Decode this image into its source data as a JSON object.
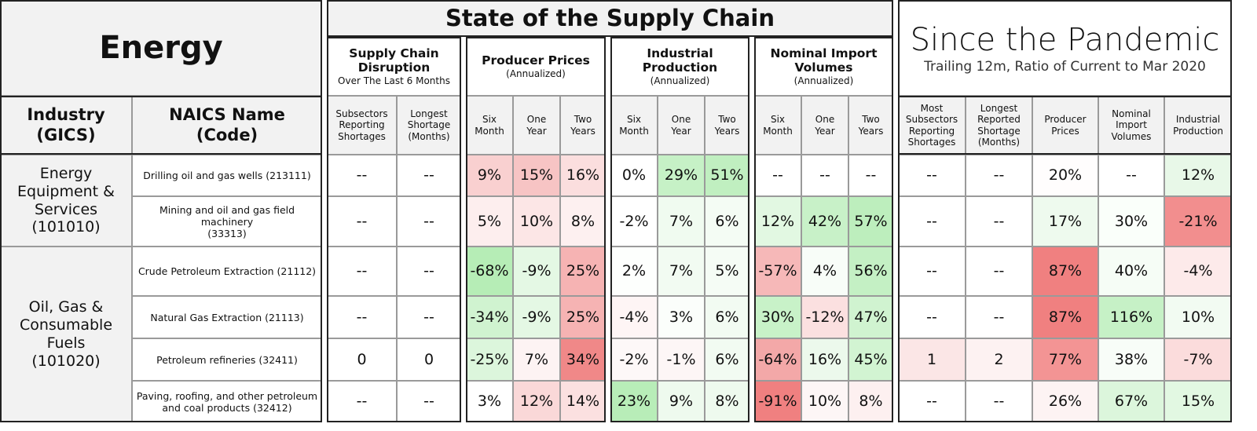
{
  "header": {
    "title": "Energy"
  },
  "supply_chain": {
    "title": "State of the Supply Chain",
    "groups": [
      {
        "title": "Supply Chain\nDisruption",
        "subtitle": "Over The Last 6 Months"
      },
      {
        "title": "Producer Prices",
        "subtitle": "(Annualized)"
      },
      {
        "title": "Industrial Production",
        "subtitle": "(Annualized)"
      },
      {
        "title": "Nominal Import\nVolumes",
        "subtitle": "(Annualized)"
      }
    ]
  },
  "pandemic": {
    "title": "Since the Pandemic",
    "subtitle": "Trailing 12m, Ratio of Current to Mar 2020"
  },
  "column_headers": [
    "Industry\n(GICS)",
    "NAICS Name\n(Code)",
    "Subsectors\nReporting\nShortages",
    "Longest\nShortage\n(Months)",
    "Six\nMonth",
    "One\nYear",
    "Two\nYears",
    "Six\nMonth",
    "One\nYear",
    "Two\nYears",
    "Six\nMonth",
    "One\nYear",
    "Two\nYears",
    "Most\nSubsectors\nReporting\nShortages",
    "Longest\nReported\nShortage\n(Months)",
    "Producer\nPrices",
    "Nominal\nImport\nVolumes",
    "Industrial\nProduction"
  ],
  "industries": [
    {
      "name": "Energy\nEquipment &\nServices\n(101010)",
      "rows": [
        {
          "naics": "Drilling oil and gas wells   (213111)",
          "cells": [
            "--",
            "--",
            "9%",
            "15%",
            "16%",
            "0%",
            "29%",
            "51%",
            "--",
            "--",
            "--",
            "--",
            "--",
            "20%",
            "--",
            "12%"
          ],
          "colors": [
            "#ffffff",
            "#ffffff",
            "#f9d0d0",
            "#f7c4c4",
            "#fbdede",
            "#ffffff",
            "#c6f1c6",
            "#c0efc0",
            "#ffffff",
            "#ffffff",
            "#ffffff",
            "#ffffff",
            "#ffffff",
            "#fffdfd",
            "#ffffff",
            "#e8f8e8"
          ]
        },
        {
          "naics": "Mining and oil and gas field machinery\n(33313)",
          "cells": [
            "--",
            "--",
            "5%",
            "10%",
            "8%",
            "-2%",
            "7%",
            "6%",
            "12%",
            "42%",
            "57%",
            "--",
            "--",
            "17%",
            "30%",
            "-21%"
          ],
          "colors": [
            "#ffffff",
            "#ffffff",
            "#fdeeee",
            "#fce6e6",
            "#fdf0f0",
            "#ffffff",
            "#f0fbf0",
            "#f4fcf4",
            "#e2f8e2",
            "#c8f1c8",
            "#bdeebd",
            "#ffffff",
            "#ffffff",
            "#eefaee",
            "#fafffa",
            "#f28e8e"
          ]
        }
      ]
    },
    {
      "name": "Oil, Gas &\nConsumable\nFuels\n(101020)",
      "rows": [
        {
          "naics": "Crude Petroleum Extraction (21112)",
          "cells": [
            "--",
            "--",
            "-68%",
            "-9%",
            "25%",
            "2%",
            "7%",
            "5%",
            "-57%",
            "4%",
            "56%",
            "--",
            "--",
            "87%",
            "40%",
            "-4%"
          ],
          "colors": [
            "#ffffff",
            "#ffffff",
            "#b6edb6",
            "#e4f8e4",
            "#f6b3b3",
            "#fdfffd",
            "#f2fbf2",
            "#f5fcf5",
            "#f6b8b8",
            "#f8fdf8",
            "#c4f0c4",
            "#ffffff",
            "#ffffff",
            "#f08080",
            "#f6fdf6",
            "#fdeaea"
          ]
        },
        {
          "naics": "Natural Gas Extraction (21113)",
          "cells": [
            "--",
            "--",
            "-34%",
            "-9%",
            "25%",
            "-4%",
            "3%",
            "6%",
            "30%",
            "-12%",
            "47%",
            "--",
            "--",
            "87%",
            "116%",
            "10%"
          ],
          "colors": [
            "#ffffff",
            "#ffffff",
            "#d0f3d0",
            "#e4f8e4",
            "#f6b3b3",
            "#fef5f5",
            "#fbfefb",
            "#f2fbf2",
            "#c8f2c8",
            "#fbe0e0",
            "#d0f3d0",
            "#ffffff",
            "#ffffff",
            "#f08080",
            "#c6f1c6",
            "#f2fbf2"
          ]
        },
        {
          "naics": "Petroleum refineries   (32411)",
          "cells": [
            "0",
            "0",
            "-25%",
            "7%",
            "34%",
            "-2%",
            "-1%",
            "6%",
            "-64%",
            "16%",
            "45%",
            "1",
            "2",
            "77%",
            "38%",
            "-7%"
          ],
          "colors": [
            "#ffffff",
            "#ffffff",
            "#dcf6dc",
            "#fdf3f3",
            "#f08888",
            "#fdf8f8",
            "#fdf6f6",
            "#f2fbf2",
            "#f3a8a8",
            "#ecf9ec",
            "#d2f4d2",
            "#fbe6e6",
            "#fdf2f2",
            "#f39494",
            "#f8fdf8",
            "#fbdcdc"
          ]
        },
        {
          "naics": "Paving, roofing, and other petroleum\nand coal products   (32412)",
          "cells": [
            "--",
            "--",
            "3%",
            "12%",
            "14%",
            "23%",
            "9%",
            "8%",
            "-91%",
            "10%",
            "8%",
            "--",
            "--",
            "26%",
            "67%",
            "15%"
          ],
          "colors": [
            "#ffffff",
            "#ffffff",
            "#ffffff",
            "#fad8d8",
            "#fbe0e0",
            "#b8edb8",
            "#eefaee",
            "#eefaee",
            "#f08080",
            "#fdf6f6",
            "#fdf0f0",
            "#ffffff",
            "#ffffff",
            "#fdf3f3",
            "#dcf6dc",
            "#e2f8e2"
          ]
        }
      ]
    }
  ]
}
